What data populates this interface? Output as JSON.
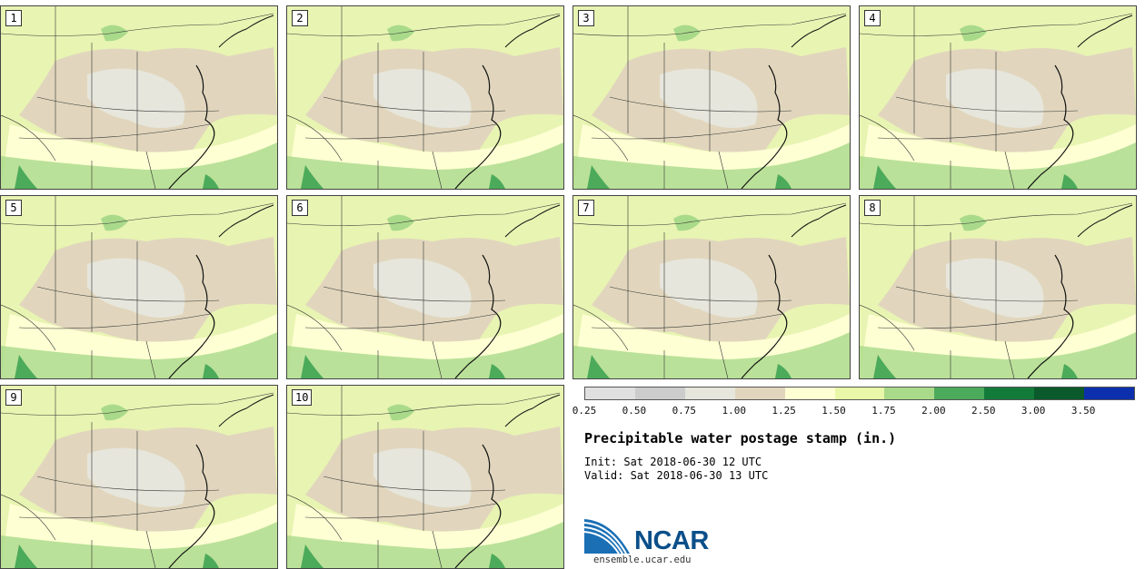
{
  "panels": [
    {
      "label": "1"
    },
    {
      "label": "2"
    },
    {
      "label": "3"
    },
    {
      "label": "4"
    },
    {
      "label": "5"
    },
    {
      "label": "6"
    },
    {
      "label": "7"
    },
    {
      "label": "8"
    },
    {
      "label": "9"
    },
    {
      "label": "10"
    }
  ],
  "legend": {
    "colors": [
      "#e0e0e0",
      "#cccccc",
      "#e6e6dc",
      "#e1d6bd",
      "#ffffd4",
      "#e8f7a8",
      "#a9da8a",
      "#4caa5b",
      "#137b3a",
      "#0a5a2b",
      "#0b2fad"
    ],
    "ticks": [
      "0.25",
      "0.50",
      "0.75",
      "1.00",
      "1.25",
      "1.50",
      "1.75",
      "2.00",
      "2.50",
      "3.00",
      "3.50"
    ]
  },
  "title": "Precipitable water postage stamp (in.)",
  "init": "Init: Sat 2018-06-30 12 UTC",
  "valid": "Valid: Sat 2018-06-30 13 UTC",
  "logo": {
    "text": "NCAR",
    "site": "ensemble.ucar.edu"
  }
}
